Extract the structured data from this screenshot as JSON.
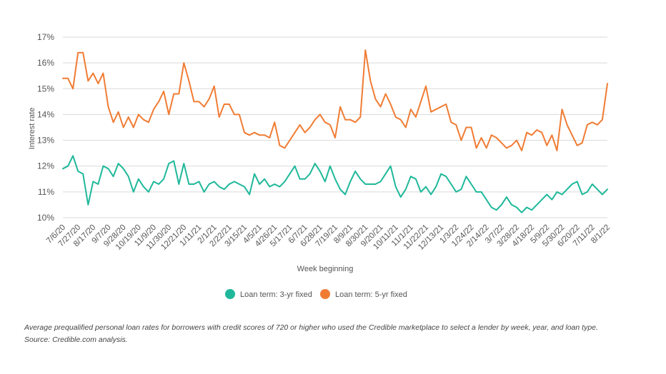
{
  "chart_data": {
    "type": "line",
    "xlabel": "Week beginning",
    "ylabel": "Interest rate",
    "ylim": [
      10,
      17
    ],
    "yticks": [
      10,
      11,
      12,
      13,
      14,
      15,
      16,
      17
    ],
    "ytick_labels": [
      "10%",
      "11%",
      "12%",
      "13%",
      "14%",
      "15%",
      "16%",
      "17%"
    ],
    "ytick_suffix": "%",
    "n_weeks": 109,
    "x_tick_labels": [
      "7/6/20",
      "7/27/20",
      "8/17/20",
      "9/7/20",
      "9/28/20",
      "10/19/20",
      "11/9/20",
      "11/30/20",
      "12/21/20",
      "1/11/21",
      "2/1/21",
      "2/22/21",
      "3/15/21",
      "4/5/21",
      "4/26/21",
      "5/17/21",
      "6/7/21",
      "6/28/21",
      "7/19/21",
      "8/9/21",
      "8/30/21",
      "9/20/21",
      "10/11/21",
      "11/1/21",
      "11/22/21",
      "12/13/21",
      "1/3/22",
      "1/24/22",
      "2/14/22",
      "3/7/22",
      "3/28/22",
      "4/18/22",
      "5/9/22",
      "5/30/22",
      "6/20/22",
      "7/11/22",
      "8/1/22"
    ],
    "x_tick_every": 3,
    "series": [
      {
        "name": "Loan term: 3-yr fixed",
        "color": "#1fb89a",
        "values": [
          11.9,
          12.0,
          12.4,
          11.8,
          11.7,
          10.5,
          11.4,
          11.3,
          12.0,
          11.9,
          11.6,
          12.1,
          11.9,
          11.6,
          11.0,
          11.5,
          11.2,
          11.0,
          11.4,
          11.3,
          11.5,
          12.1,
          12.2,
          11.3,
          12.1,
          11.3,
          11.3,
          11.4,
          11.0,
          11.3,
          11.4,
          11.2,
          11.1,
          11.3,
          11.4,
          11.3,
          11.2,
          10.9,
          11.7,
          11.3,
          11.5,
          11.2,
          11.3,
          11.2,
          11.4,
          11.7,
          12.0,
          11.5,
          11.5,
          11.7,
          12.1,
          11.8,
          11.4,
          12.0,
          11.5,
          11.1,
          10.9,
          11.4,
          11.8,
          11.5,
          11.3,
          11.3,
          11.3,
          11.4,
          11.7,
          12.0,
          11.2,
          10.8,
          11.1,
          11.6,
          11.5,
          11.0,
          11.2,
          10.9,
          11.2,
          11.7,
          11.6,
          11.3,
          11.0,
          11.1,
          11.6,
          11.3,
          11.0,
          11.0,
          10.7,
          10.4,
          10.3,
          10.5,
          10.8,
          10.5,
          10.4,
          10.2,
          10.4,
          10.3,
          10.5,
          10.7,
          10.9,
          10.7,
          11.0,
          10.9,
          11.1,
          11.3,
          11.4,
          10.9,
          11.0,
          11.3,
          11.1,
          10.9,
          11.1
        ]
      },
      {
        "name": "Loan term: 5-yr fixed",
        "color": "#f07c34",
        "values": [
          15.4,
          15.4,
          15.0,
          16.4,
          16.4,
          15.3,
          15.6,
          15.2,
          15.6,
          14.3,
          13.7,
          14.1,
          13.5,
          13.9,
          13.5,
          14.0,
          13.8,
          13.7,
          14.2,
          14.5,
          14.9,
          14.0,
          14.8,
          14.8,
          16.0,
          15.3,
          14.5,
          14.5,
          14.3,
          14.6,
          15.1,
          13.9,
          14.4,
          14.4,
          14.0,
          14.0,
          13.3,
          13.2,
          13.3,
          13.2,
          13.2,
          13.1,
          13.7,
          12.8,
          12.7,
          13.0,
          13.3,
          13.6,
          13.3,
          13.5,
          13.8,
          14.0,
          13.7,
          13.6,
          13.1,
          14.3,
          13.8,
          13.8,
          13.7,
          13.9,
          16.5,
          15.3,
          14.6,
          14.3,
          14.8,
          14.4,
          13.9,
          13.8,
          13.5,
          14.2,
          13.9,
          14.5,
          15.1,
          14.1,
          14.2,
          14.3,
          14.4,
          13.7,
          13.6,
          13.0,
          13.5,
          13.5,
          12.7,
          13.1,
          12.7,
          13.2,
          13.1,
          12.9,
          12.7,
          12.8,
          13.0,
          12.6,
          13.3,
          13.2,
          13.4,
          13.3,
          12.8,
          13.2,
          12.6,
          14.2,
          13.6,
          13.2,
          12.8,
          12.9,
          13.6,
          13.7,
          13.6,
          13.8,
          15.2
        ]
      }
    ]
  },
  "legend": {
    "items": [
      {
        "label": "Loan term: 3-yr fixed",
        "color": "#1fb89a"
      },
      {
        "label": "Loan term: 5-yr fixed",
        "color": "#f07c34"
      }
    ]
  },
  "caption": "Average prequalified personal loan rates for borrowers with credit scores of 720 or higher who used the Credible marketplace to select a lender by week, year, and loan type. Source: Credible.com analysis."
}
